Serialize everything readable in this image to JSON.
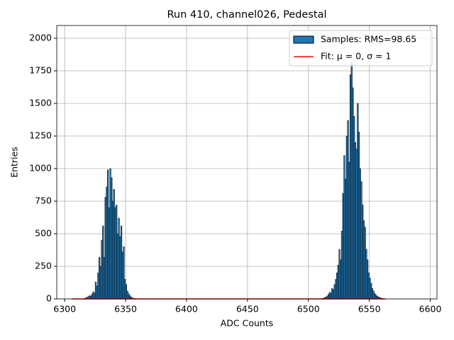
{
  "chart_data": {
    "type": "histogram",
    "title": "Run 410, channel026, Pedestal",
    "xlabel": "ADC Counts",
    "ylabel": "Entries",
    "xlim": [
      6293.5,
      6605.5
    ],
    "ylim": [
      0,
      2098
    ],
    "xticks": [
      6300,
      6350,
      6400,
      6450,
      6500,
      6550,
      6600
    ],
    "yticks": [
      0,
      250,
      500,
      750,
      1000,
      1250,
      1500,
      1750,
      2000
    ],
    "grid": true,
    "legend": "upper right",
    "series": [
      {
        "type": "histogram",
        "name": "Samples: RMS=98.65",
        "color": "#1f77b4",
        "edgecolor": "#000000",
        "bins": [
          6315,
          6316,
          6317,
          6318,
          6319,
          6320,
          6321,
          6322,
          6323,
          6324,
          6325,
          6326,
          6327,
          6328,
          6329,
          6330,
          6331,
          6332,
          6333,
          6334,
          6335,
          6336,
          6337,
          6338,
          6339,
          6340,
          6341,
          6342,
          6343,
          6344,
          6345,
          6346,
          6347,
          6348,
          6349,
          6350,
          6351,
          6352,
          6353,
          6354,
          6355,
          6356,
          6357,
          6358,
          6359,
          6360,
          6361,
          6510,
          6511,
          6512,
          6513,
          6514,
          6515,
          6516,
          6517,
          6518,
          6519,
          6520,
          6521,
          6522,
          6523,
          6524,
          6525,
          6526,
          6527,
          6528,
          6529,
          6530,
          6531,
          6532,
          6533,
          6534,
          6535,
          6536,
          6537,
          6538,
          6539,
          6540,
          6541,
          6542,
          6543,
          6544,
          6545,
          6546,
          6547,
          6548,
          6549,
          6550,
          6551,
          6552,
          6553,
          6554,
          6555,
          6556,
          6557,
          6558,
          6559,
          6560,
          6561,
          6562,
          6563,
          6564
        ],
        "values": [
          2,
          5,
          8,
          12,
          18,
          25,
          20,
          38,
          55,
          45,
          130,
          100,
          200,
          320,
          250,
          450,
          560,
          320,
          780,
          860,
          990,
          700,
          1000,
          930,
          750,
          840,
          700,
          720,
          500,
          620,
          480,
          560,
          360,
          400,
          150,
          110,
          60,
          40,
          25,
          15,
          8,
          5,
          3,
          2,
          1,
          1,
          0,
          2,
          4,
          6,
          10,
          15,
          22,
          35,
          50,
          45,
          80,
          70,
          110,
          150,
          200,
          260,
          380,
          300,
          520,
          810,
          1100,
          920,
          1250,
          1370,
          1050,
          1720,
          1810,
          1620,
          1400,
          1200,
          1150,
          1500,
          1280,
          1000,
          900,
          720,
          600,
          550,
          380,
          300,
          200,
          160,
          120,
          80,
          60,
          40,
          30,
          20,
          15,
          10,
          6,
          4,
          3,
          2,
          1
        ]
      },
      {
        "type": "line",
        "name": "Fit: μ = 0, σ = 1",
        "color": "#ff0000",
        "x": [
          6306,
          6563
        ],
        "values": [
          0,
          0
        ]
      }
    ]
  }
}
